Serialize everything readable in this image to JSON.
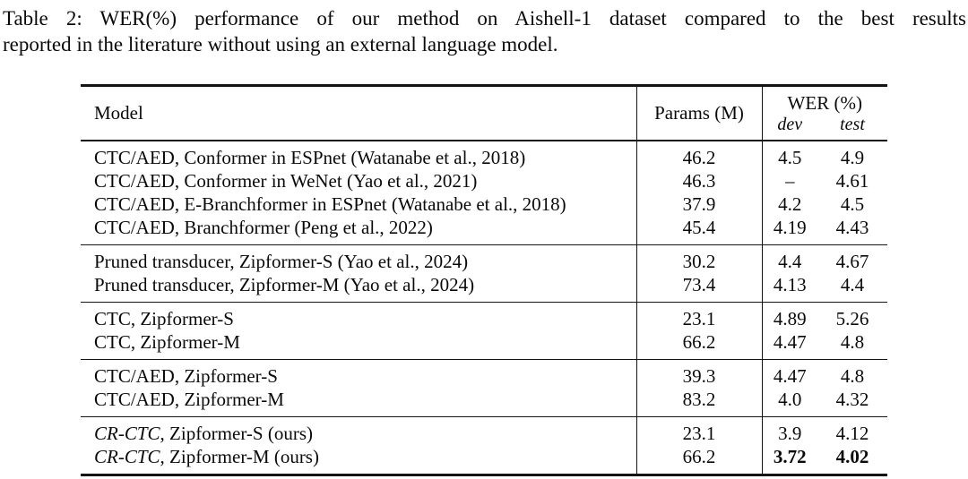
{
  "caption": {
    "label": "Table 2:",
    "full_text": "Table 2: WER(%) performance of our method on Aishell-1 dataset compared to the best results reported in the literature without using an external language model.",
    "line1": "Table 2: WER(%) performance of our method on Aishell-1 dataset compared to the best results",
    "line2": "reported in the literature without using an external language model."
  },
  "table": {
    "columns": {
      "model": "Model",
      "params": "Params (M)",
      "wer": "WER (%)",
      "dev": "dev",
      "test": "test"
    },
    "groups": [
      {
        "rows": [
          {
            "model_em": "",
            "model_rest": "CTC/AED, Conformer in ESPnet (Watanabe et al., 2018)",
            "params": "46.2",
            "dev": "4.5",
            "test": "4.9"
          },
          {
            "model_em": "",
            "model_rest": "CTC/AED, Conformer in WeNet (Yao et al., 2021)",
            "params": "46.3",
            "dev": "–",
            "test": "4.61"
          },
          {
            "model_em": "",
            "model_rest": "CTC/AED, E-Branchformer in ESPnet (Watanabe et al., 2018)",
            "params": "37.9",
            "dev": "4.2",
            "test": "4.5"
          },
          {
            "model_em": "",
            "model_rest": "CTC/AED, Branchformer (Peng et al., 2022)",
            "params": "45.4",
            "dev": "4.19",
            "test": "4.43"
          }
        ]
      },
      {
        "rows": [
          {
            "model_em": "",
            "model_rest": "Pruned transducer, Zipformer-S (Yao et al., 2024)",
            "params": "30.2",
            "dev": "4.4",
            "test": "4.67"
          },
          {
            "model_em": "",
            "model_rest": "Pruned transducer, Zipformer-M (Yao et al., 2024)",
            "params": "73.4",
            "dev": "4.13",
            "test": "4.4"
          }
        ]
      },
      {
        "rows": [
          {
            "model_em": "",
            "model_rest": "CTC, Zipformer-S",
            "params": "23.1",
            "dev": "4.89",
            "test": "5.26"
          },
          {
            "model_em": "",
            "model_rest": "CTC, Zipformer-M",
            "params": "66.2",
            "dev": "4.47",
            "test": "4.8"
          }
        ]
      },
      {
        "rows": [
          {
            "model_em": "",
            "model_rest": "CTC/AED, Zipformer-S",
            "params": "39.3",
            "dev": "4.47",
            "test": "4.8"
          },
          {
            "model_em": "",
            "model_rest": "CTC/AED, Zipformer-M",
            "params": "83.2",
            "dev": "4.0",
            "test": "4.32"
          }
        ]
      },
      {
        "rows": [
          {
            "model_em": "CR-CTC",
            "model_rest": ", Zipformer-S (ours)",
            "params": "23.1",
            "dev": "3.9",
            "test": "4.12"
          },
          {
            "model_em": "CR-CTC",
            "model_rest": ", Zipformer-M (ours)",
            "params": "66.2",
            "dev": "3.72",
            "test": "4.02"
          }
        ]
      }
    ],
    "colors": {
      "text": "#0a0a0a",
      "rule": "#141414",
      "background": "#ffffff"
    }
  }
}
